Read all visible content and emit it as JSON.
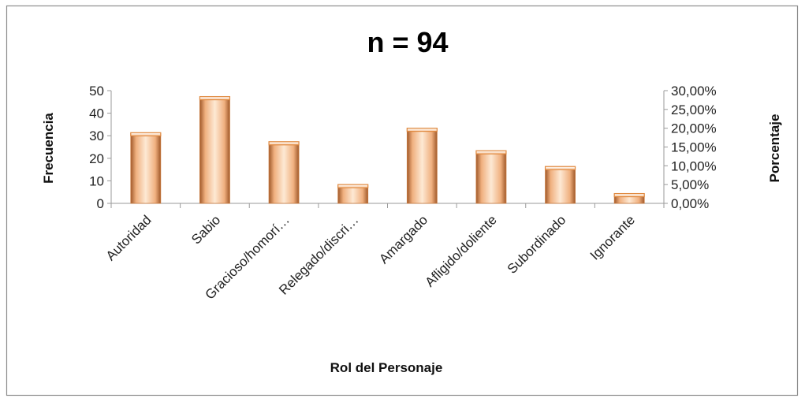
{
  "chart_data": {
    "type": "bar",
    "title": "n = 94",
    "xlabel": "Rol del Personaje",
    "ylabel": "Frecuencia",
    "y2label": "Porcentaje",
    "categories": [
      "Autoridad",
      "Sabio",
      "Gracioso/homorí…",
      "Relegado/discri…",
      "Amargado",
      "Afligido/doliente",
      "Subordinado",
      "Ignorante"
    ],
    "series": [
      {
        "values": [
          31,
          47,
          27,
          8,
          33,
          23,
          16,
          4
        ]
      }
    ],
    "ylim": [
      0,
      50
    ],
    "yticks": [
      "0",
      "10",
      "20",
      "30",
      "40",
      "50"
    ],
    "y2lim": [
      0,
      0.3
    ],
    "y2ticks": [
      "0,00%",
      "5,00%",
      "10,00%",
      "15,00%",
      "20,00%",
      "25,00%",
      "30,00%"
    ],
    "grid": false,
    "legend": "none",
    "colors": {
      "bar_light": "#fde6cf",
      "bar_mid": "#f2b587",
      "bar_dark": "#8a4a22",
      "bar_edge": "#e0893f",
      "axis": "#9a9a9a",
      "frame": "#8c8c8c"
    }
  }
}
